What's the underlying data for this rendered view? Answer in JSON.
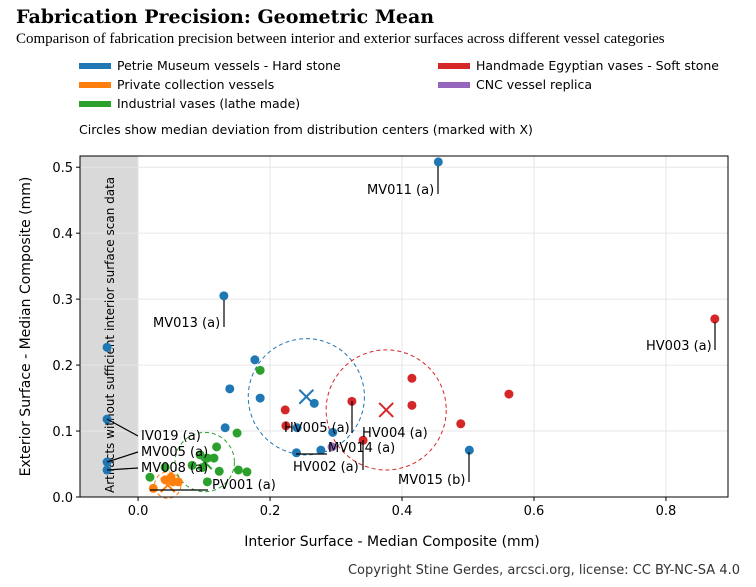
{
  "chart_data": {
    "type": "scatter",
    "title": "Fabrication Precision: Geometric Mean",
    "subtitle": "Comparison of fabrication precision between interior and exterior surfaces across different vessel categories",
    "xlabel": "Interior Surface - Median Composite (mm)",
    "ylabel": "Exterior Surface - Median Composite (mm)",
    "xlim": [
      -0.088,
      0.894
    ],
    "ylim": [
      0,
      0.517
    ],
    "xticks": [
      "0.0",
      "0.2",
      "0.4",
      "0.6",
      "0.8"
    ],
    "xtick_values": [
      0,
      0.2,
      0.4,
      0.6,
      0.8
    ],
    "yticks": [
      "0.0",
      "0.1",
      "0.2",
      "0.3",
      "0.4",
      "0.5"
    ],
    "ytick_values": [
      0,
      0.1,
      0.2,
      0.3,
      0.4,
      0.5
    ],
    "grid": true,
    "legend_placement": "top, above plot",
    "note": "Circles show median deviation from distribution centers (marked with X)",
    "shaded_region_label": "Artifacts without sufficient interior surface scan data",
    "shaded_region_x": [
      -0.088,
      0
    ],
    "series": [
      {
        "name": "Petrie Museum vessels - Hard stone",
        "color": "#1f77b4",
        "median": [
          0.255,
          0.152
        ],
        "median_radius": 0.088,
        "points": [
          [
            0.455,
            0.508,
            "MV011 (a)"
          ],
          [
            0.13,
            0.305,
            "MV013 (a)"
          ],
          [
            -0.047,
            0.227,
            ""
          ],
          [
            0.177,
            0.208,
            ""
          ],
          [
            0.139,
            0.164,
            ""
          ],
          [
            0.185,
            0.15,
            ""
          ],
          [
            -0.047,
            0.118,
            "IV019 (a)"
          ],
          [
            0.267,
            0.142,
            ""
          ],
          [
            0.132,
            0.105,
            ""
          ],
          [
            0.241,
            0.105,
            "HV005 (a)"
          ],
          [
            0.295,
            0.098,
            ""
          ],
          [
            0.24,
            0.067,
            "HV002 (a)"
          ],
          [
            0.277,
            0.071,
            ""
          ],
          [
            0.502,
            0.071,
            "MV015 (b)"
          ],
          [
            -0.047,
            0.053,
            "MV005 (a)"
          ],
          [
            -0.047,
            0.041,
            "MV008 (a)"
          ]
        ]
      },
      {
        "name": "Private collection vessels",
        "color": "#ff7f0e",
        "median": [
          0.045,
          0.018
        ],
        "median_radius": 0.02,
        "points": [
          [
            0.023,
            0.013,
            "PV001 (a)"
          ],
          [
            0.041,
            0.026,
            ""
          ],
          [
            0.05,
            0.03,
            ""
          ],
          [
            0.053,
            0.023,
            ""
          ],
          [
            0.061,
            0.023,
            ""
          ]
        ]
      },
      {
        "name": "Industrial vases (lathe made)",
        "color": "#2ca02c",
        "median": [
          0.101,
          0.053
        ],
        "median_radius": 0.045,
        "points": [
          [
            0.185,
            0.192,
            ""
          ],
          [
            0.15,
            0.097,
            ""
          ],
          [
            0.119,
            0.076,
            ""
          ],
          [
            0.094,
            0.064,
            ""
          ],
          [
            0.105,
            0.059,
            ""
          ],
          [
            0.115,
            0.059,
            ""
          ],
          [
            0.082,
            0.048,
            ""
          ],
          [
            0.098,
            0.045,
            ""
          ],
          [
            0.123,
            0.039,
            ""
          ],
          [
            0.152,
            0.041,
            ""
          ],
          [
            0.165,
            0.038,
            ""
          ],
          [
            0.105,
            0.023,
            ""
          ],
          [
            0.018,
            0.03,
            ""
          ],
          [
            0.041,
            0.045,
            ""
          ]
        ]
      },
      {
        "name": "Handmade Egyptian vases - Soft stone",
        "color": "#d62728",
        "median": [
          0.376,
          0.132
        ],
        "median_radius": 0.091,
        "points": [
          [
            0.874,
            0.27,
            "HV003 (a)"
          ],
          [
            0.415,
            0.18,
            ""
          ],
          [
            0.562,
            0.156,
            ""
          ],
          [
            0.324,
            0.145,
            "HV004 (a)"
          ],
          [
            0.415,
            0.139,
            ""
          ],
          [
            0.223,
            0.132,
            ""
          ],
          [
            0.489,
            0.111,
            ""
          ],
          [
            0.224,
            0.108,
            ""
          ],
          [
            0.341,
            0.086,
            "MV014 (a)"
          ]
        ]
      },
      {
        "name": "CNC vessel replica",
        "color": "#9467bd",
        "points": [
          [
            0.294,
            0.076,
            ""
          ]
        ]
      }
    ]
  },
  "credit": "Copyright Stine Gerdes, arcsci.org, license: CC BY-NC-SA 4.0"
}
